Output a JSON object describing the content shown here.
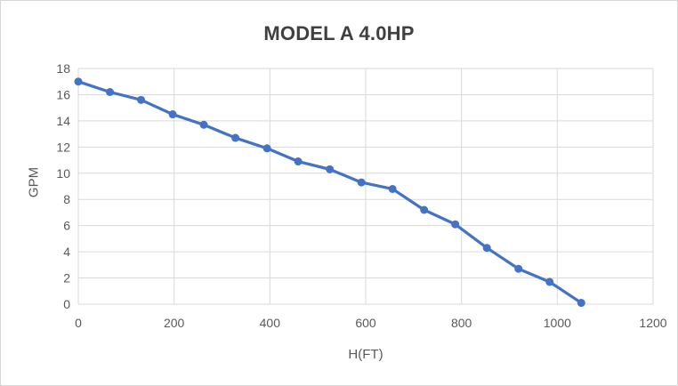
{
  "chart_data": {
    "type": "line",
    "title": "MODEL A 4.0HP",
    "xlabel": "H(FT)",
    "ylabel": "GPM",
    "x": [
      0,
      66,
      131,
      197,
      262,
      328,
      394,
      459,
      525,
      591,
      656,
      722,
      787,
      853,
      919,
      984,
      1050
    ],
    "y": [
      17.0,
      16.2,
      15.6,
      14.5,
      13.7,
      12.7,
      11.9,
      10.9,
      10.3,
      9.3,
      8.8,
      7.2,
      6.1,
      4.3,
      2.7,
      1.7,
      0.1
    ],
    "xlim": [
      0,
      1200
    ],
    "ylim": [
      0,
      18
    ],
    "x_ticks": [
      0,
      200,
      400,
      600,
      800,
      1000,
      1200
    ],
    "y_ticks": [
      0,
      2,
      4,
      6,
      8,
      10,
      12,
      14,
      16,
      18
    ],
    "grid": true,
    "legend": false,
    "marker": "circle",
    "colors": {
      "series": "#4472C4",
      "gridline": "#d9d9d9",
      "tick_label": "#595959",
      "axis_title": "#595959",
      "title": "#404040",
      "background": "#ffffff",
      "border": "#d6d6d6"
    }
  }
}
